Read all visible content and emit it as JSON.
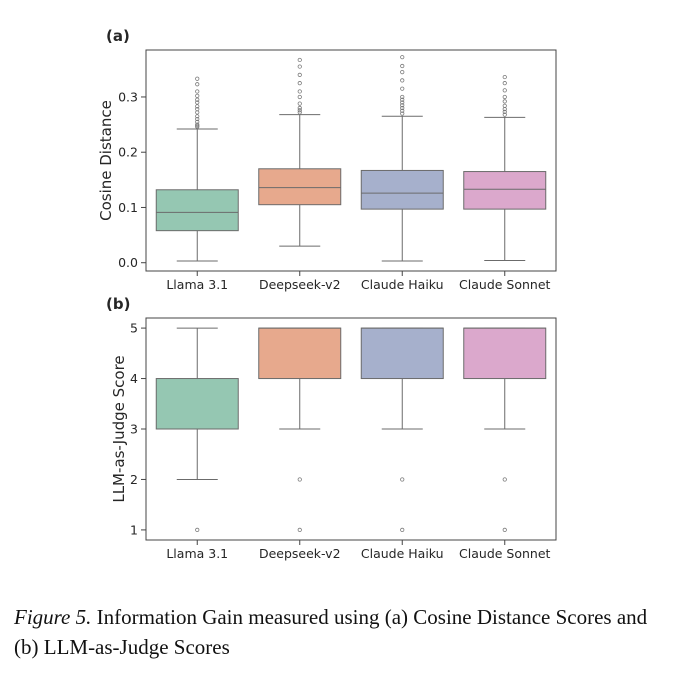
{
  "chart_data": [
    {
      "type": "box",
      "panel_label": "(a)",
      "ylabel": "Cosine Distance",
      "xlabel": "",
      "categories": [
        "Llama 3.1",
        "Deepseek-v2",
        "Claude Haiku",
        "Claude Sonnet"
      ],
      "ylim": [
        -0.015,
        0.385
      ],
      "yticks": [
        0.0,
        0.1,
        0.2,
        0.3
      ],
      "ytick_labels": [
        "0.0",
        "0.1",
        "0.2",
        "0.3"
      ],
      "colors": [
        "#95c7b2",
        "#e7a98d",
        "#a6b0cc",
        "#dba8cc"
      ],
      "boxes": [
        {
          "q1": 0.058,
          "median": 0.091,
          "q3": 0.132,
          "whisker_low": 0.003,
          "whisker_high": 0.242,
          "outliers": [
            0.246,
            0.248,
            0.25,
            0.255,
            0.26,
            0.265,
            0.272,
            0.278,
            0.283,
            0.29,
            0.295,
            0.302,
            0.31,
            0.323,
            0.333
          ]
        },
        {
          "q1": 0.105,
          "median": 0.136,
          "q3": 0.17,
          "whisker_low": 0.03,
          "whisker_high": 0.268,
          "outliers": [
            0.272,
            0.276,
            0.28,
            0.288,
            0.3,
            0.31,
            0.325,
            0.34,
            0.355,
            0.367
          ]
        },
        {
          "q1": 0.097,
          "median": 0.126,
          "q3": 0.167,
          "whisker_low": 0.003,
          "whisker_high": 0.265,
          "outliers": [
            0.27,
            0.275,
            0.28,
            0.285,
            0.29,
            0.295,
            0.3,
            0.315,
            0.33,
            0.345,
            0.356,
            0.372
          ]
        },
        {
          "q1": 0.097,
          "median": 0.133,
          "q3": 0.165,
          "whisker_low": 0.004,
          "whisker_high": 0.263,
          "outliers": [
            0.268,
            0.273,
            0.278,
            0.284,
            0.292,
            0.3,
            0.312,
            0.325,
            0.336
          ]
        }
      ]
    },
    {
      "type": "box",
      "panel_label": "(b)",
      "ylabel": "LLM-as-Judge Score",
      "xlabel": "",
      "categories": [
        "Llama 3.1",
        "Deepseek-v2",
        "Claude Haiku",
        "Claude Sonnet"
      ],
      "ylim": [
        0.8,
        5.2
      ],
      "yticks": [
        1,
        2,
        3,
        4,
        5
      ],
      "ytick_labels": [
        "1",
        "2",
        "3",
        "4",
        "5"
      ],
      "colors": [
        "#95c7b2",
        "#e7a98d",
        "#a6b0cc",
        "#dba8cc"
      ],
      "boxes": [
        {
          "q1": 3,
          "median": 3,
          "q3": 4,
          "whisker_low": 2,
          "whisker_high": 5,
          "outliers": [
            1
          ]
        },
        {
          "q1": 4,
          "median": 5,
          "q3": 5,
          "whisker_low": 3,
          "whisker_high": 5,
          "outliers": [
            2,
            1
          ]
        },
        {
          "q1": 4,
          "median": 5,
          "q3": 5,
          "whisker_low": 3,
          "whisker_high": 5,
          "outliers": [
            2,
            1
          ]
        },
        {
          "q1": 4,
          "median": 5,
          "q3": 5,
          "whisker_low": 3,
          "whisker_high": 5,
          "outliers": [
            2,
            1
          ]
        }
      ]
    }
  ],
  "caption": {
    "figure_number": "Figure 5.",
    "text": "Information Gain measured using (a) Cosine Distance Scores and (b) LLM-as-Judge Scores"
  }
}
